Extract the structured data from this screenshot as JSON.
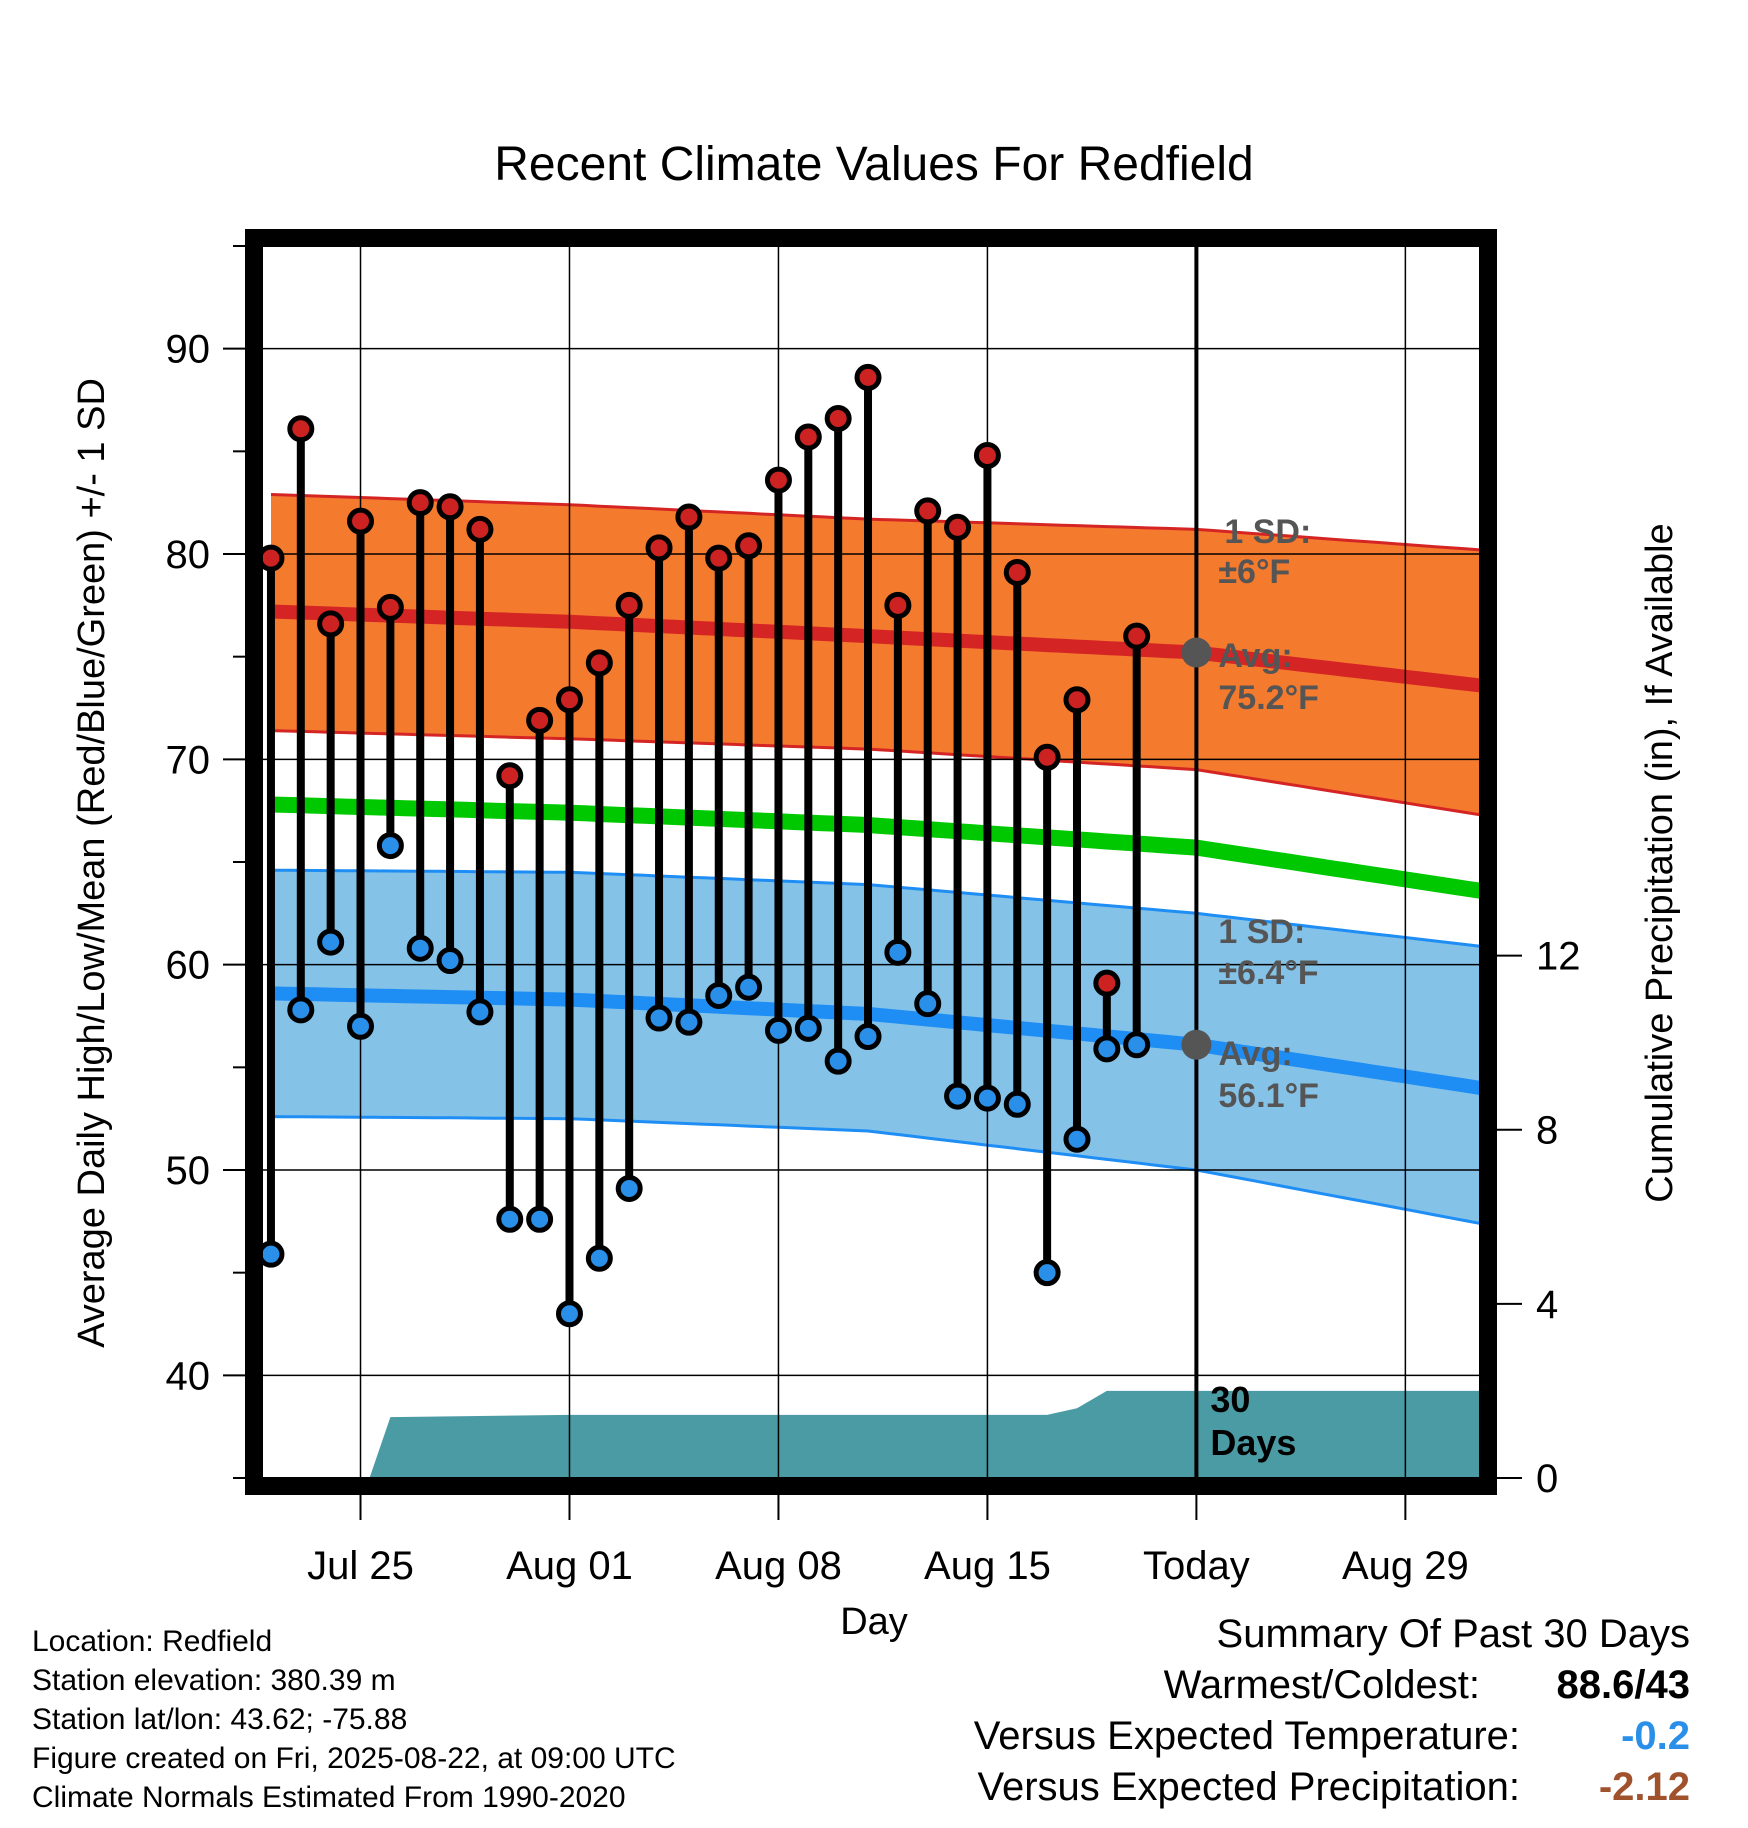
{
  "chart_data": {
    "type": "line",
    "title": "Recent Climate Values For Redfield",
    "xlabel": "Day",
    "ylabel": "Average Daily High/Low/Mean (Red/Blue/Green) +/- 1 SD",
    "y2label": "Cumulative Precipitation (in), If Available",
    "ylim": [
      35,
      95
    ],
    "y2lim": [
      0,
      28.3
    ],
    "yticks": [
      40,
      50,
      60,
      70,
      80,
      90
    ],
    "y2ticks": [
      0,
      4,
      8,
      12
    ],
    "xlim": [
      -0.3,
      40.5
    ],
    "xtick_positions": [
      3,
      10,
      17,
      24,
      31,
      38
    ],
    "xtick_labels": [
      "Jul 25",
      "Aug 01",
      "Aug 08",
      "Aug 15",
      "Today",
      "Aug 29"
    ],
    "today_x": 31,
    "grid": true,
    "colors": {
      "high_band": "#f47a2e",
      "high_line": "#d42524",
      "low_band": "#85c2e8",
      "low_line": "#1e8ef5",
      "mean_line": "#00c800",
      "precip_fill": "#4a9ba4",
      "high_marker": "#cc2222",
      "low_marker": "#2a8fe8",
      "today_marker": "#555555",
      "temp_diff": "#2a8fe8",
      "precip_diff": "#a0522d"
    },
    "normals": {
      "x": [
        0,
        10,
        20,
        31,
        40.5
      ],
      "avg_high": [
        77.2,
        76.7,
        76.0,
        75.2,
        73.6
      ],
      "avg_high_upper": [
        82.9,
        82.4,
        81.7,
        81.2,
        80.2
      ],
      "avg_high_lower": [
        71.4,
        71.0,
        70.5,
        69.5,
        67.3
      ],
      "avg_mean": [
        67.8,
        67.4,
        66.8,
        65.7,
        63.6
      ],
      "avg_low": [
        58.6,
        58.3,
        57.6,
        56.1,
        54.0
      ],
      "avg_low_upper": [
        64.6,
        64.5,
        63.9,
        62.5,
        60.9
      ],
      "avg_low_lower": [
        52.6,
        52.5,
        51.9,
        50.0,
        47.4
      ]
    },
    "daily": {
      "x": [
        0,
        1,
        2,
        3,
        4,
        5,
        6,
        7,
        8,
        9,
        10,
        11,
        12,
        13,
        14,
        15,
        16,
        17,
        18,
        19,
        20,
        21,
        22,
        23,
        24,
        25,
        26,
        27,
        28,
        29,
        30
      ],
      "high": [
        79.8,
        86.1,
        76.6,
        81.6,
        77.4,
        82.5,
        82.3,
        81.2,
        69.2,
        71.9,
        72.9,
        74.7,
        77.5,
        80.3,
        81.8,
        79.8,
        80.4,
        83.6,
        85.7,
        86.6,
        88.6,
        77.5,
        82.1,
        81.3,
        84.8,
        79.1,
        70.1,
        72.9,
        59.1,
        76.0,
        null
      ],
      "low": [
        45.9,
        57.8,
        61.1,
        57.0,
        65.8,
        60.8,
        60.2,
        57.7,
        47.6,
        47.6,
        43.0,
        45.7,
        49.1,
        57.4,
        57.2,
        58.5,
        58.9,
        56.8,
        56.9,
        55.3,
        56.5,
        60.6,
        58.1,
        53.6,
        53.5,
        53.2,
        45.0,
        51.5,
        55.9,
        56.1,
        null
      ]
    },
    "precip": {
      "x": [
        3.3,
        4.0,
        10,
        26,
        27,
        28,
        31,
        40.5
      ],
      "y": [
        0,
        1.4,
        1.45,
        1.45,
        1.6,
        2.0,
        2.0,
        2.0
      ],
      "label_line1": "30",
      "label_line2": "Days"
    },
    "annotations": {
      "high_sd_line1": "1 SD:",
      "high_sd_line2": "±6°F",
      "high_avg_line1": "Avg:",
      "high_avg_line2": "75.2°F",
      "low_sd_line1": "1 SD:",
      "low_sd_line2": "±6.4°F",
      "low_avg_line1": "Avg:",
      "low_avg_line2": "56.1°F"
    }
  },
  "footer": {
    "location": "Location: Redfield",
    "elevation": "Station elevation: 380.39 m",
    "latlon": "Station lat/lon: 43.62; -75.88",
    "created": "Figure created on Fri, 2025-08-22, at 09:00 UTC",
    "normals": "Climate Normals Estimated From 1990-2020"
  },
  "summary": {
    "heading": "Summary Of Past 30 Days",
    "warm_cold_label": "Warmest/Coldest:",
    "warm_cold_value": "88.6/43",
    "temp_label": "Versus Expected Temperature:",
    "temp_value": "-0.2",
    "precip_label": "Versus Expected Precipitation:",
    "precip_value": "-2.12"
  }
}
